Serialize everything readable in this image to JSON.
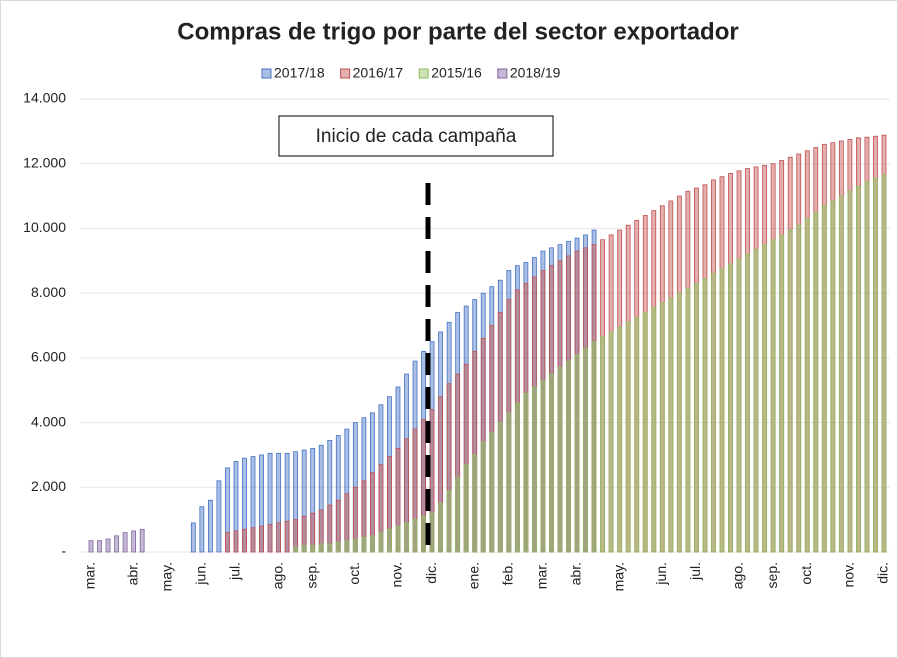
{
  "chart_data": {
    "type": "bar",
    "title": "Compras de trigo por parte del sector exportador",
    "annotation": "Inicio de cada campaña",
    "categories": [
      "mar.",
      null,
      null,
      null,
      null,
      "abr.",
      null,
      null,
      null,
      "may.",
      null,
      null,
      null,
      "jun.",
      null,
      null,
      null,
      "jul.",
      null,
      null,
      null,
      null,
      "ago.",
      null,
      null,
      null,
      "sep.",
      null,
      null,
      null,
      null,
      "oct.",
      null,
      null,
      null,
      null,
      "nov.",
      null,
      null,
      null,
      "dic.",
      null,
      null,
      null,
      null,
      "ene.",
      null,
      null,
      null,
      "feb.",
      null,
      null,
      null,
      "mar.",
      null,
      null,
      null,
      "abr.",
      null,
      null,
      null,
      null,
      "may.",
      null,
      null,
      null,
      null,
      "jun.",
      null,
      null,
      null,
      "jul.",
      null,
      null,
      null,
      null,
      "ago.",
      null,
      null,
      null,
      "sep.",
      null,
      null,
      null,
      "oct.",
      null,
      null,
      null,
      null,
      "nov.",
      null,
      null,
      null,
      "dic."
    ],
    "series": [
      {
        "name": "2017/18",
        "color": "#4472c4",
        "values": [
          null,
          null,
          null,
          null,
          null,
          null,
          null,
          null,
          null,
          null,
          null,
          null,
          900,
          1400,
          1600,
          2200,
          2600,
          2800,
          2900,
          2950,
          3000,
          3050,
          3050,
          3050,
          3100,
          3150,
          3200,
          3300,
          3450,
          3600,
          3800,
          4000,
          4150,
          4300,
          4550,
          4800,
          5100,
          5500,
          5900,
          6200,
          6500,
          6800,
          7100,
          7400,
          7600,
          7800,
          8000,
          8200,
          8400,
          8700,
          8850,
          8950,
          9100,
          9300,
          9400,
          9500,
          9600,
          9700,
          9800,
          9950,
          null,
          null,
          null,
          null,
          null,
          null,
          null,
          null,
          null,
          null,
          null,
          null,
          null,
          null,
          null,
          null,
          null,
          null,
          null,
          null,
          null,
          null,
          null,
          null,
          null,
          null,
          null,
          null,
          null,
          null,
          null,
          null,
          null,
          null
        ]
      },
      {
        "name": "2016/17",
        "color": "#c0504d",
        "values": [
          null,
          null,
          null,
          null,
          null,
          null,
          null,
          null,
          null,
          null,
          null,
          null,
          null,
          null,
          null,
          null,
          600,
          650,
          700,
          750,
          800,
          850,
          900,
          950,
          1000,
          1100,
          1200,
          1300,
          1450,
          1600,
          1800,
          2000,
          2200,
          2450,
          2700,
          2950,
          3200,
          3500,
          3800,
          4100,
          4400,
          4800,
          5200,
          5500,
          5800,
          6200,
          6600,
          7000,
          7400,
          7800,
          8100,
          8300,
          8500,
          8700,
          8850,
          9000,
          9150,
          9300,
          9400,
          9500,
          9650,
          9800,
          9950,
          10100,
          10250,
          10400,
          10550,
          10700,
          10850,
          11000,
          11150,
          11250,
          11350,
          11500,
          11600,
          11700,
          11780,
          11850,
          11900,
          11950,
          12000,
          12100,
          12200,
          12300,
          12400,
          12500,
          12600,
          12650,
          12700,
          12750,
          12800,
          12820,
          12850,
          12880
        ]
      },
      {
        "name": "2015/16",
        "color": "#8fbf5f",
        "values": [
          null,
          null,
          null,
          null,
          null,
          null,
          null,
          null,
          null,
          null,
          null,
          null,
          null,
          null,
          null,
          null,
          null,
          null,
          null,
          null,
          null,
          null,
          null,
          null,
          150,
          200,
          200,
          250,
          250,
          300,
          350,
          400,
          450,
          500,
          600,
          700,
          800,
          900,
          1000,
          1100,
          1200,
          1500,
          1900,
          2300,
          2700,
          3000,
          3400,
          3700,
          4000,
          4300,
          4600,
          4900,
          5100,
          5300,
          5500,
          5700,
          5900,
          6100,
          6300,
          6500,
          6650,
          6800,
          6950,
          7100,
          7250,
          7400,
          7550,
          7700,
          7850,
          8000,
          8150,
          8300,
          8450,
          8600,
          8750,
          8900,
          9050,
          9200,
          9350,
          9500,
          9650,
          9800,
          9950,
          10100,
          10300,
          10500,
          10700,
          10850,
          11000,
          11150,
          11300,
          11450,
          11550,
          11650
        ]
      },
      {
        "name": "2018/19",
        "color": "#8064a2",
        "values": [
          350,
          350,
          400,
          500,
          600,
          650,
          700,
          null,
          null,
          null,
          null,
          null,
          null,
          null,
          null,
          null,
          null,
          null,
          null,
          null,
          null,
          null,
          null,
          null,
          null,
          null,
          null,
          null,
          null,
          null,
          null,
          null,
          null,
          null,
          null,
          null,
          null,
          null,
          null,
          null,
          null,
          null,
          null,
          null,
          null,
          null,
          null,
          null,
          null,
          null,
          null,
          null,
          null,
          null,
          null,
          null,
          null,
          null,
          null,
          null,
          null,
          null,
          null,
          null,
          null,
          null,
          null,
          null,
          null,
          null,
          null,
          null,
          null,
          null,
          null,
          null,
          null,
          null,
          null,
          null,
          null,
          null,
          null,
          null,
          null,
          null,
          null,
          null,
          null,
          null,
          null,
          null,
          null,
          null
        ]
      }
    ],
    "ylim": [
      0,
      14000
    ],
    "yticks": [
      {
        "value": 0,
        "label": "-"
      },
      {
        "value": 2000,
        "label": "2.000"
      },
      {
        "value": 4000,
        "label": "4.000"
      },
      {
        "value": 6000,
        "label": "6.000"
      },
      {
        "value": 8000,
        "label": "8.000"
      },
      {
        "value": 10000,
        "label": "10.000"
      },
      {
        "value": 12000,
        "label": "12.000"
      },
      {
        "value": 14000,
        "label": "14.000"
      }
    ],
    "grid": true
  }
}
